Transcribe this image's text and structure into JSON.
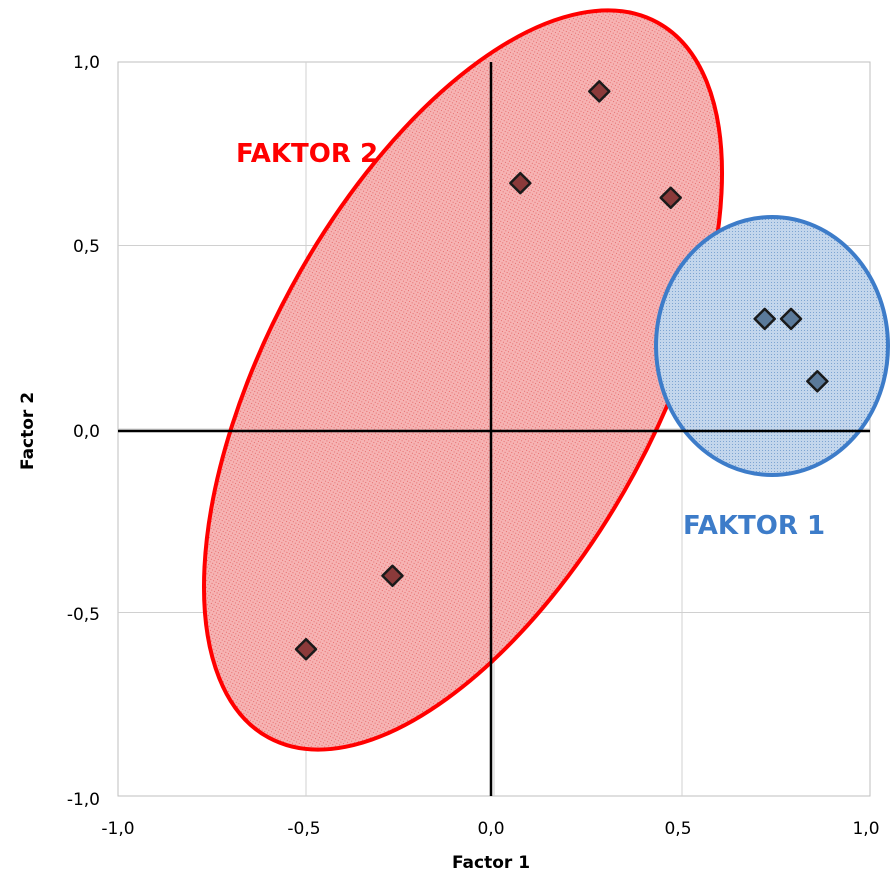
{
  "chart_data": {
    "type": "scatter",
    "title": "",
    "xlabel": "Factor 1",
    "ylabel": "Factor 2",
    "xlim": [
      -1.0,
      1.0
    ],
    "ylim": [
      -1.0,
      1.0
    ],
    "x_ticks": [
      "-1,0",
      "-0,5",
      "0,0",
      "0,5",
      "1,0"
    ],
    "y_ticks": [
      "1,0",
      "0,5",
      "0,0",
      "-0,5",
      "-1,0"
    ],
    "grid": true,
    "groups": [
      {
        "name": "FAKTOR 2",
        "color": "#ff0000",
        "fill": "#f2a0a0",
        "marker_color": "#8b3a3a",
        "points": [
          {
            "x": -0.5,
            "y": -0.6
          },
          {
            "x": -0.27,
            "y": -0.4
          },
          {
            "x": 0.07,
            "y": 0.67
          },
          {
            "x": 0.28,
            "y": 0.92
          },
          {
            "x": 0.47,
            "y": 0.63
          }
        ]
      },
      {
        "name": "FAKTOR 1",
        "color": "#3d7cc9",
        "fill": "#a9c3e2",
        "marker_color": "#5b7a9a",
        "points": [
          {
            "x": 0.72,
            "y": 0.3
          },
          {
            "x": 0.79,
            "y": 0.3
          },
          {
            "x": 0.86,
            "y": 0.13
          }
        ]
      }
    ]
  }
}
